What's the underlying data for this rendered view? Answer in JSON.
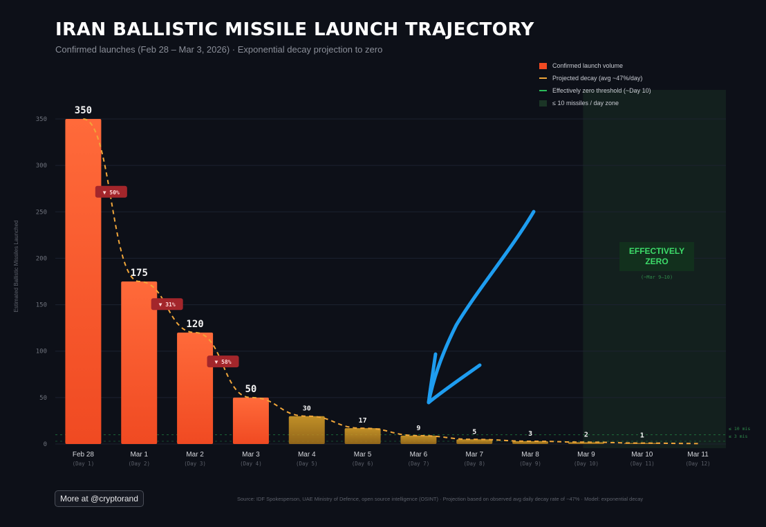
{
  "header": {
    "title": "IRAN BALLISTIC MISSILE LAUNCH TRAJECTORY",
    "subtitle": "Confirmed launches (Feb 28 – Mar 3, 2026) · Exponential decay projection to zero"
  },
  "legend": {
    "items": [
      "Confirmed launch volume",
      "Projected decay (avg ~47%/day)",
      "Effectively zero threshold (~Day 10)",
      "≤ 10 missiles / day zone"
    ]
  },
  "zone": {
    "label_line1": "EFFECTIVELY",
    "label_line2": "ZERO",
    "sublabel": "(~Mar 9–10)",
    "threshold_label_1": "≤ 10 mis",
    "threshold_label_2": "≤ 3 mis"
  },
  "footer": {
    "more_button": "More at @cryptorand",
    "source": "Source: IDF Spokesperson, UAE Ministry of Defence, open source intelligence (OSINT) · Projection based on observed avg daily decay rate of ~47% · Model: exponential decay"
  },
  "colors": {
    "confirmed": "#f04a22",
    "projected": "#d99a1c",
    "decay_line": "#f0a63a",
    "zero_zone": "#1b3526",
    "threshold": "#2bbd5a",
    "badge": "#a3262b"
  },
  "chart_data": {
    "type": "bar",
    "ylabel": "Estimated Ballistic Missiles Launched",
    "ylim": [
      0,
      350
    ],
    "yticks": [
      0,
      50,
      100,
      150,
      200,
      250,
      300,
      350
    ],
    "categories": [
      "Feb 28",
      "Mar 1",
      "Mar 2",
      "Mar 3",
      "Mar 4",
      "Mar 5",
      "Mar 6",
      "Mar 7",
      "Mar 8",
      "Mar 9",
      "Mar 10",
      "Mar 11"
    ],
    "sublabels": [
      "(Day 1)",
      "(Day 2)",
      "(Day 3)",
      "(Day 4)",
      "(Day 5)",
      "(Day 6)",
      "(Day 7)",
      "(Day 8)",
      "(Day 9)",
      "(Day 10)",
      "(Day 11)",
      "(Day 12)"
    ],
    "series": [
      {
        "name": "Confirmed launch volume",
        "values": [
          350,
          175,
          120,
          50,
          null,
          null,
          null,
          null,
          null,
          null,
          null,
          null
        ]
      },
      {
        "name": "Projected decay (avg ~47%/day)",
        "values": [
          null,
          null,
          null,
          null,
          30,
          17,
          9,
          5,
          3,
          2,
          1,
          null
        ]
      }
    ],
    "data_labels": [
      "350",
      "175",
      "120",
      "50",
      "30",
      "17",
      "9",
      "5",
      "3",
      "2",
      "1",
      ""
    ],
    "drop_badges": [
      {
        "after_category": "Feb 28",
        "label": "▼ 50%"
      },
      {
        "after_category": "Mar 1",
        "label": "▼ 31%"
      },
      {
        "after_category": "Mar 2",
        "label": "▼ 58%"
      }
    ],
    "zero_zone_from": "Mar 10",
    "thresholds": [
      10,
      3
    ],
    "grid": true
  }
}
